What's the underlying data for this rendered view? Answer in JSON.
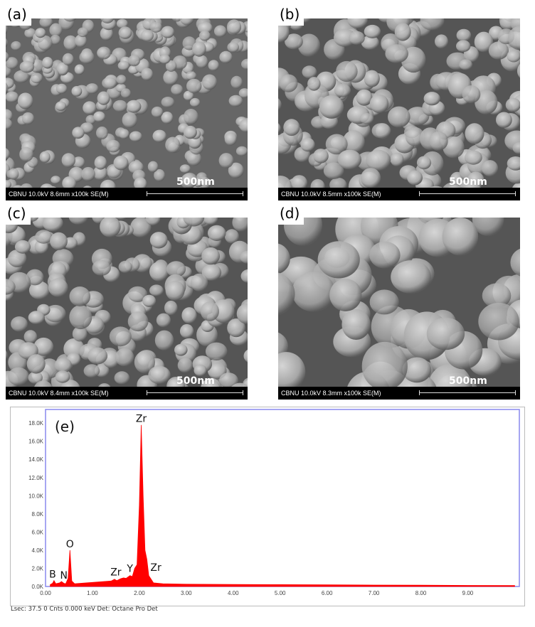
{
  "panels": [
    {
      "label": "(a)",
      "info": "CBNU 10.0kV 8.6mm x100k SE(M)",
      "scale": "500nm"
    },
    {
      "label": "(b)",
      "info": "CBNU 10.0kV 8.5mm x100k SE(M)",
      "scale": "500nm"
    },
    {
      "label": "(c)",
      "info": "CBNU 10.0kV 8.4mm x100k SE(M)",
      "scale": "500nm"
    },
    {
      "label": "(d)",
      "info": "CBNU 10.0kV 8.3mm x100k SE(M)",
      "scale": "500nm"
    }
  ],
  "footer": "Lsec: 37.5 0 Cnts  0.000 keV Det: Octane Pro Det",
  "chart_data": {
    "type": "area",
    "panel_label": "(e)",
    "xlim": [
      0,
      10.1
    ],
    "ylim": [
      0,
      19500
    ],
    "x_ticks": [
      "0.00",
      "1.00",
      "2.00",
      "3.00",
      "4.00",
      "5.00",
      "6.00",
      "7.00",
      "8.00",
      "9.00"
    ],
    "y_ticks": [
      "0.0K",
      "2.0K",
      "4.0K",
      "6.0K",
      "8.0K",
      "10.0K",
      "12.0K",
      "14.0K",
      "16.0K",
      "18.0K"
    ],
    "color": "#ff0000",
    "frame_color": "#8888ee",
    "x": [
      0.1,
      0.15,
      0.18,
      0.22,
      0.3,
      0.34,
      0.39,
      0.43,
      0.48,
      0.52,
      0.56,
      0.62,
      1.0,
      1.4,
      1.47,
      1.52,
      1.6,
      1.66,
      1.72,
      1.8,
      1.85,
      1.9,
      1.95,
      2.0,
      2.04,
      2.08,
      2.12,
      2.16,
      2.2,
      2.3,
      2.5,
      3.0,
      4.0,
      5.0,
      6.0,
      7.0,
      8.0,
      9.0,
      10.0
    ],
    "y": [
      200,
      350,
      650,
      300,
      400,
      550,
      350,
      300,
      900,
      4000,
      600,
      300,
      450,
      600,
      800,
      650,
      850,
      950,
      900,
      1200,
      1100,
      2000,
      2400,
      9000,
      17800,
      10000,
      4000,
      3000,
      1200,
      400,
      300,
      250,
      220,
      200,
      180,
      160,
      140,
      120,
      100
    ],
    "annotations": [
      {
        "text": "B",
        "x": 0.18,
        "y": 650
      },
      {
        "text": "N",
        "x": 0.39,
        "y": 550
      },
      {
        "text": "O",
        "x": 0.52,
        "y": 4000
      },
      {
        "text": "Zr",
        "x": 1.5,
        "y": 900
      },
      {
        "text": "Y",
        "x": 1.8,
        "y": 1300
      },
      {
        "text": "Zr",
        "x": 2.04,
        "y": 17800
      },
      {
        "text": "Zr",
        "x": 2.2,
        "y": 1400
      }
    ]
  }
}
